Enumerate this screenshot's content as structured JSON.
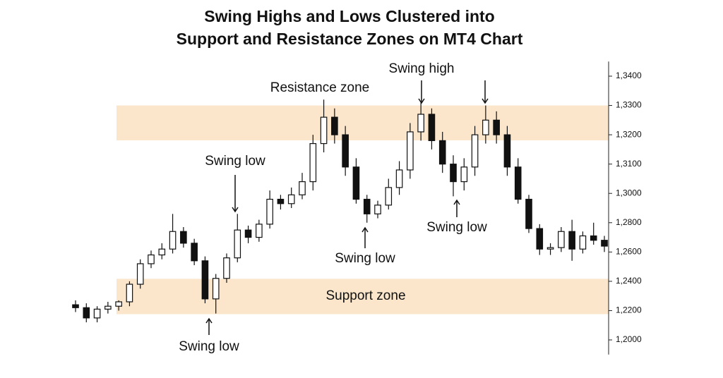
{
  "chart_data": {
    "type": "candlestick",
    "title": [
      "Swing Highs and Lows Clustered into",
      "Support and Resistance Zones on MT4 Chart"
    ],
    "color": "#111111",
    "zone_color": "#fbe6cb",
    "open": [
      1.224,
      1.222,
      1.215,
      1.221,
      1.223,
      1.226,
      1.238,
      1.252,
      1.258,
      1.262,
      1.274,
      1.266,
      1.254,
      1.228,
      1.242,
      1.256,
      1.275,
      1.27,
      1.279,
      1.296,
      1.293,
      1.299,
      1.304,
      1.317,
      1.326,
      1.32,
      1.309,
      1.296,
      1.286,
      1.292,
      1.302,
      1.308,
      1.321,
      1.327,
      1.318,
      1.31,
      1.304,
      1.309,
      1.32,
      1.325,
      1.32,
      1.309,
      1.296,
      1.276,
      1.262,
      1.263,
      1.274,
      1.262,
      1.271,
      1.268
    ],
    "high": [
      1.227,
      1.225,
      1.223,
      1.226,
      1.227,
      1.24,
      1.255,
      1.261,
      1.266,
      1.286,
      1.277,
      1.269,
      1.257,
      1.245,
      1.259,
      1.286,
      1.278,
      1.282,
      1.301,
      1.299,
      1.302,
      1.307,
      1.32,
      1.332,
      1.329,
      1.323,
      1.312,
      1.299,
      1.295,
      1.305,
      1.311,
      1.324,
      1.331,
      1.329,
      1.321,
      1.313,
      1.312,
      1.323,
      1.33,
      1.328,
      1.323,
      1.312,
      1.299,
      1.279,
      1.266,
      1.277,
      1.282,
      1.274,
      1.28,
      1.271
    ],
    "low": [
      1.219,
      1.212,
      1.212,
      1.218,
      1.22,
      1.223,
      1.235,
      1.249,
      1.255,
      1.259,
      1.263,
      1.251,
      1.225,
      1.218,
      1.239,
      1.253,
      1.266,
      1.267,
      1.276,
      1.289,
      1.29,
      1.296,
      1.301,
      1.314,
      1.317,
      1.306,
      1.293,
      1.28,
      1.283,
      1.289,
      1.299,
      1.305,
      1.318,
      1.315,
      1.307,
      1.298,
      1.301,
      1.306,
      1.317,
      1.317,
      1.306,
      1.293,
      1.273,
      1.258,
      1.258,
      1.26,
      1.254,
      1.259,
      1.265,
      1.26
    ],
    "close": [
      1.222,
      1.215,
      1.221,
      1.223,
      1.226,
      1.238,
      1.252,
      1.258,
      1.262,
      1.274,
      1.266,
      1.254,
      1.228,
      1.242,
      1.256,
      1.275,
      1.27,
      1.279,
      1.296,
      1.293,
      1.299,
      1.304,
      1.317,
      1.326,
      1.32,
      1.309,
      1.296,
      1.286,
      1.292,
      1.302,
      1.308,
      1.321,
      1.327,
      1.318,
      1.31,
      1.304,
      1.309,
      1.32,
      1.325,
      1.32,
      1.309,
      1.296,
      1.276,
      1.262,
      1.263,
      1.274,
      1.262,
      1.271,
      1.268,
      1.264
    ],
    "zones": [
      {
        "label": "Resistance zone",
        "range": [
          1.3181,
          1.33
        ]
      },
      {
        "label": "Support zone",
        "range": [
          1.2176,
          1.2417
        ]
      }
    ],
    "annotations": [
      "Swing low",
      "Swing high",
      "Swing low",
      "Swing low",
      "Swing low"
    ],
    "ylim": [
      1.19,
      1.345
    ],
    "yticks": [
      {
        "value": 1.2,
        "label": "1,2000"
      },
      {
        "value": 1.22,
        "label": "1,2200"
      },
      {
        "value": 1.24,
        "label": "1,2400"
      },
      {
        "value": 1.26,
        "label": "1,2600"
      },
      {
        "value": 1.28,
        "label": "1,2800"
      },
      {
        "value": 1.3,
        "label": "1,3000"
      },
      {
        "value": 1.31,
        "label": "1,3100"
      },
      {
        "value": 1.32,
        "label": "1,3200"
      },
      {
        "value": 1.33,
        "label": "1,3300"
      },
      {
        "value": 1.34,
        "label": "1,3400"
      }
    ]
  }
}
